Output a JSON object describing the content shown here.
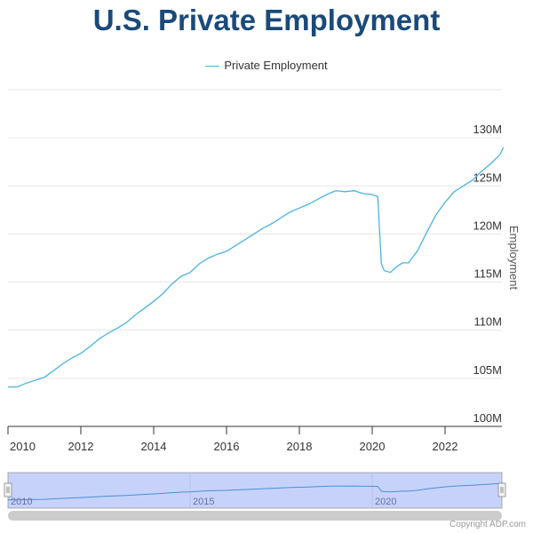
{
  "chart_data": {
    "type": "line",
    "title": "U.S. Private Employment",
    "legend": {
      "entries": [
        "Private Employment"
      ],
      "placement": "top-center"
    },
    "xlabel": "",
    "ylabel": "Employment",
    "x_ticks": [
      "2010",
      "2012",
      "2014",
      "2016",
      "2018",
      "2020",
      "2022"
    ],
    "y_ticks": [
      "100M",
      "105M",
      "110M",
      "115M",
      "120M",
      "125M",
      "130M"
    ],
    "xlim": [
      2010.0,
      2023.6
    ],
    "ylim": [
      100,
      135
    ],
    "y_axis_position": "right",
    "grid": true,
    "series": [
      {
        "name": "Private Employment",
        "color": "#4ab3e6",
        "x": [
          2010.0,
          2010.25,
          2010.5,
          2010.75,
          2011.0,
          2011.25,
          2011.5,
          2011.75,
          2012.0,
          2012.25,
          2012.5,
          2012.75,
          2013.0,
          2013.25,
          2013.5,
          2013.75,
          2014.0,
          2014.25,
          2014.5,
          2014.75,
          2015.0,
          2015.25,
          2015.5,
          2015.75,
          2016.0,
          2016.25,
          2016.5,
          2016.75,
          2017.0,
          2017.25,
          2017.5,
          2017.75,
          2018.0,
          2018.25,
          2018.5,
          2018.75,
          2019.0,
          2019.25,
          2019.5,
          2019.75,
          2020.0,
          2020.15,
          2020.25,
          2020.33,
          2020.5,
          2020.67,
          2020.83,
          2021.0,
          2021.25,
          2021.5,
          2021.75,
          2022.0,
          2022.25,
          2022.5,
          2022.75,
          2023.0,
          2023.25,
          2023.5,
          2023.6
        ],
        "values": [
          104.1,
          104.1,
          104.5,
          104.8,
          105.1,
          105.8,
          106.5,
          107.1,
          107.6,
          108.3,
          109.1,
          109.7,
          110.2,
          110.8,
          111.6,
          112.3,
          113.0,
          113.8,
          114.8,
          115.6,
          116.0,
          116.9,
          117.5,
          117.9,
          118.2,
          118.8,
          119.4,
          120.0,
          120.6,
          121.1,
          121.7,
          122.3,
          122.7,
          123.1,
          123.6,
          124.1,
          124.5,
          124.4,
          124.5,
          124.2,
          124.1,
          123.9,
          116.9,
          116.2,
          116.0,
          116.6,
          117.0,
          117.0,
          118.3,
          120.2,
          122.0,
          123.3,
          124.4,
          125.0,
          125.6,
          126.5,
          127.3,
          128.2,
          129.0
        ]
      }
    ],
    "navigator": {
      "x_labels": [
        "2010",
        "2015",
        "2020"
      ]
    }
  },
  "copyright": "Copyright ADP.com"
}
